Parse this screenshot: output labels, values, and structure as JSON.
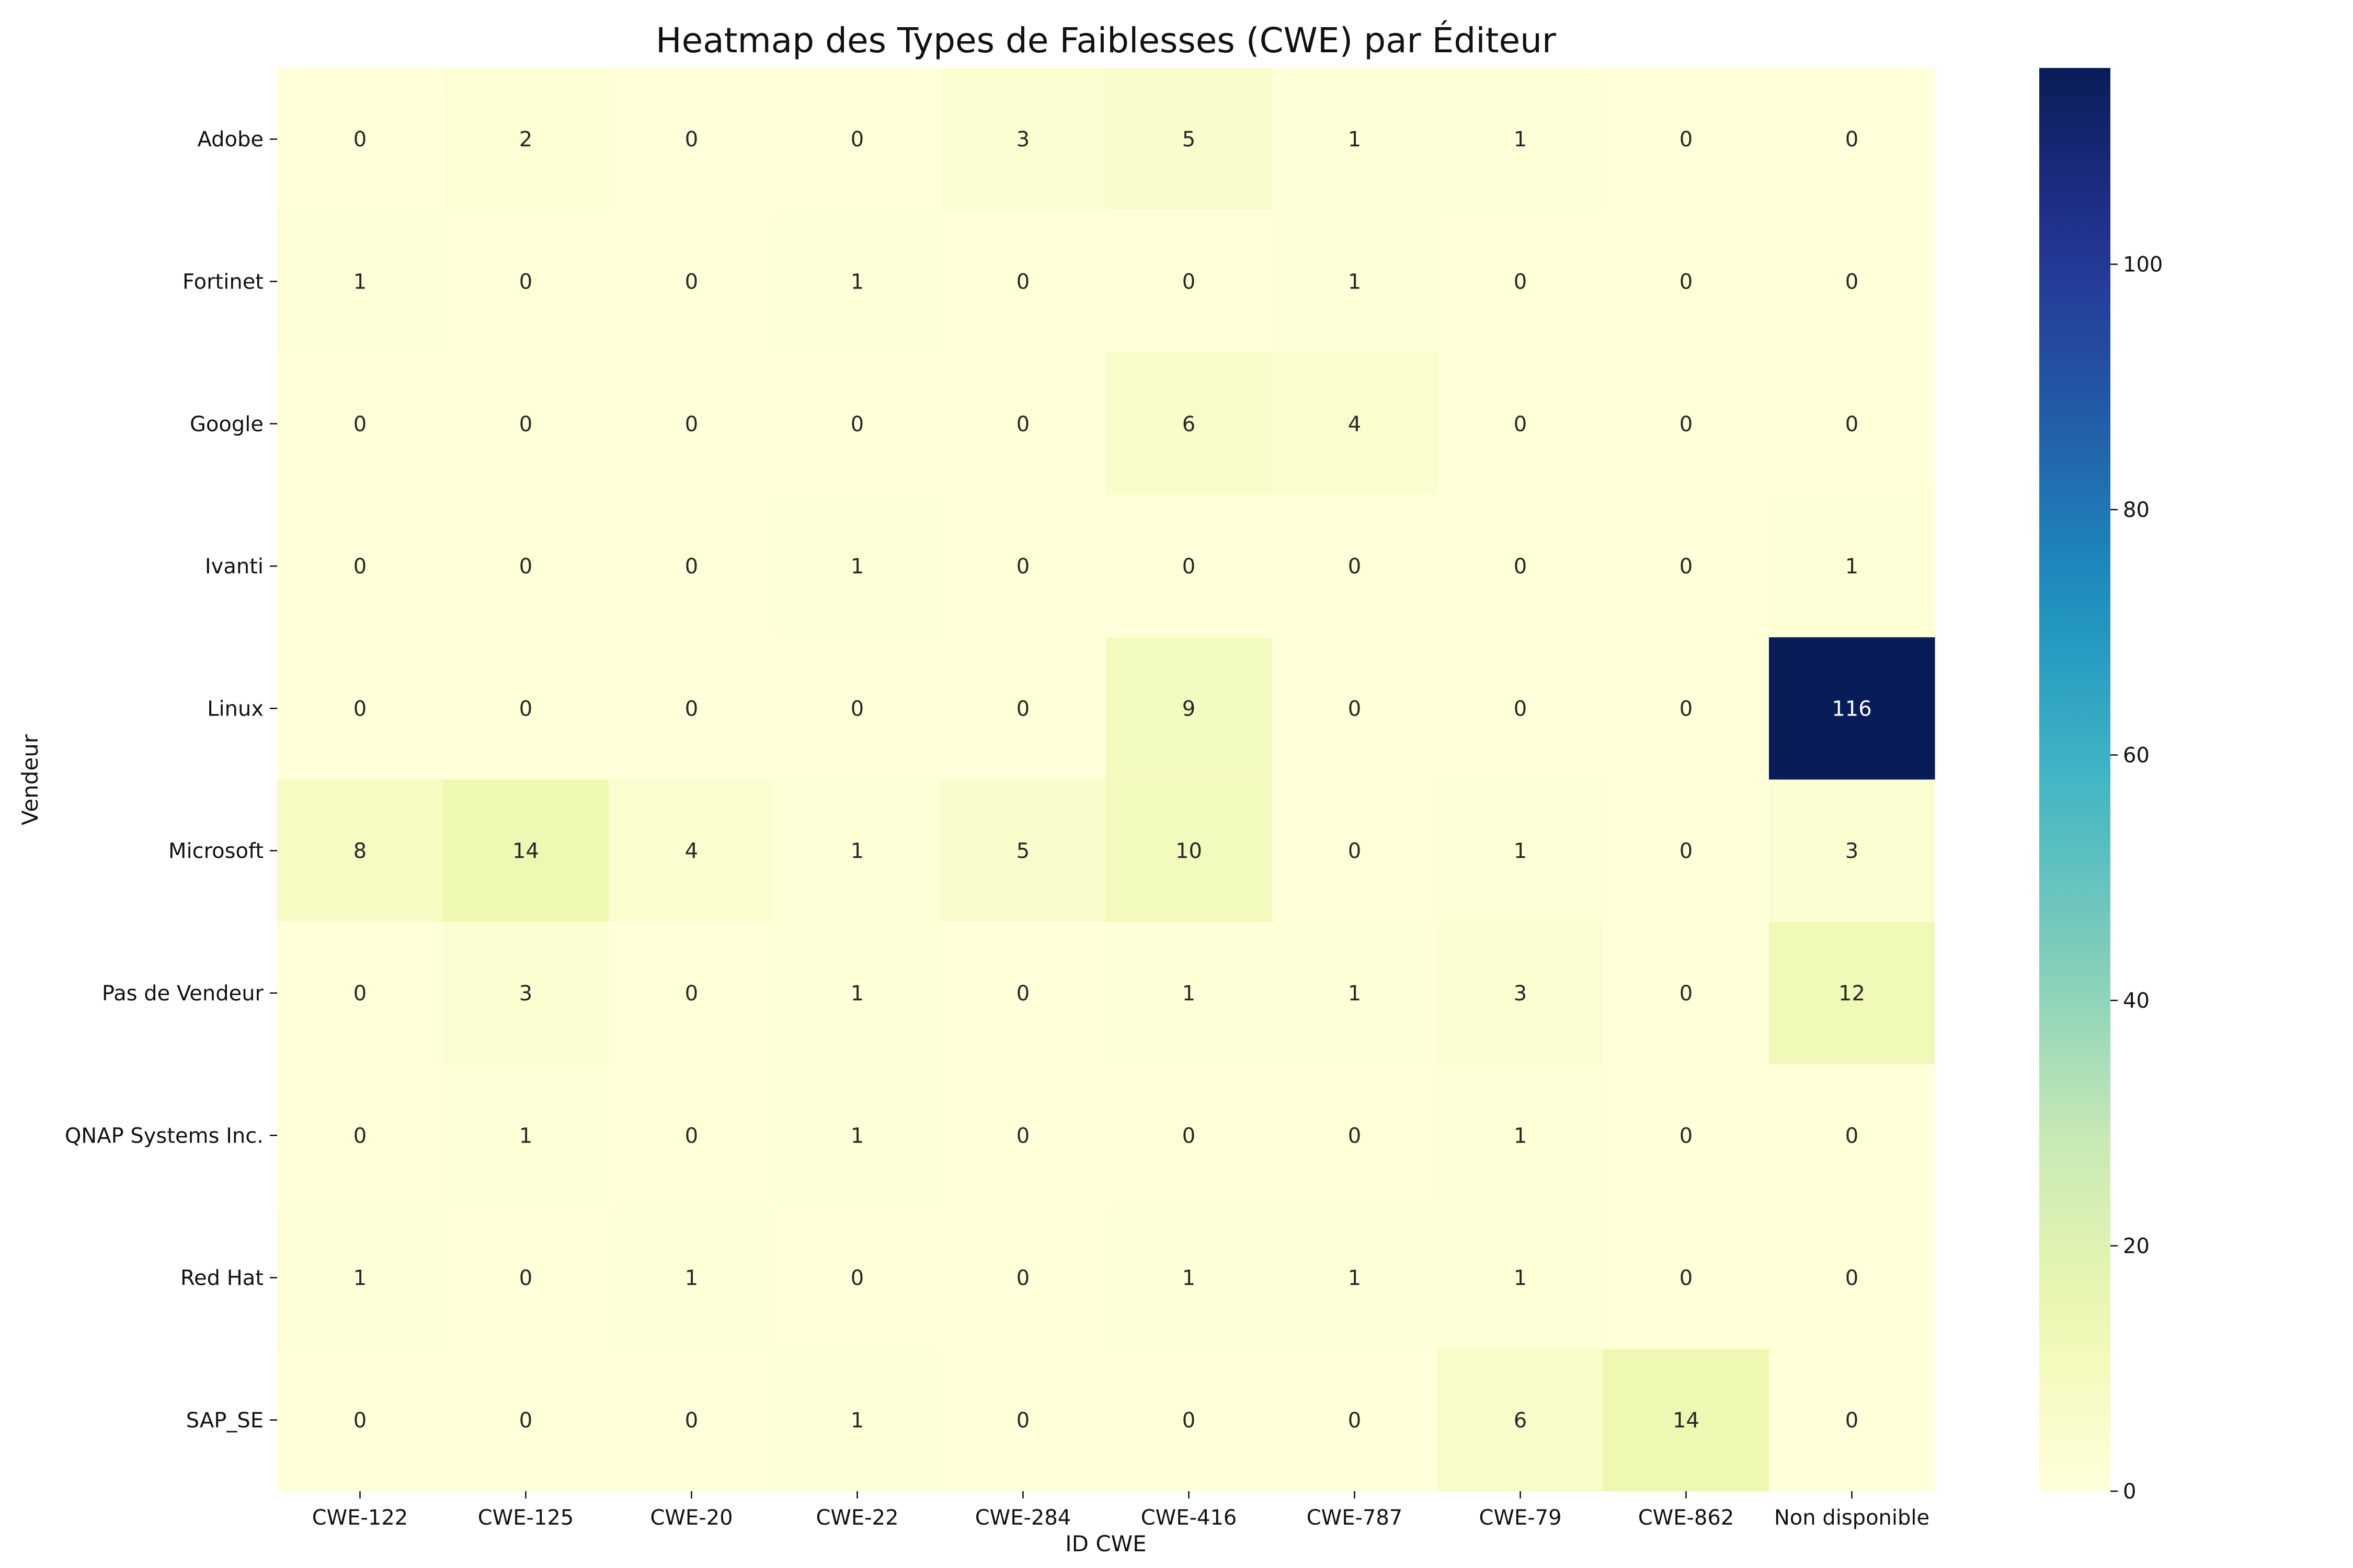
{
  "chart_data": {
    "type": "heatmap",
    "title": "Heatmap des Types de Faiblesses (CWE) par Éditeur",
    "xlabel": "ID CWE",
    "ylabel": "Vendeur",
    "x_categories": [
      "CWE-122",
      "CWE-125",
      "CWE-20",
      "CWE-22",
      "CWE-284",
      "CWE-416",
      "CWE-787",
      "CWE-79",
      "CWE-862",
      "Non disponible"
    ],
    "y_categories": [
      "Adobe",
      "Fortinet",
      "Google",
      "Ivanti",
      "Linux",
      "Microsoft",
      "Pas de Vendeur",
      "QNAP Systems Inc.",
      "Red Hat",
      "SAP_SE"
    ],
    "values": [
      [
        0,
        2,
        0,
        0,
        3,
        5,
        1,
        1,
        0,
        0
      ],
      [
        1,
        0,
        0,
        1,
        0,
        0,
        1,
        0,
        0,
        0
      ],
      [
        0,
        0,
        0,
        0,
        0,
        6,
        4,
        0,
        0,
        0
      ],
      [
        0,
        0,
        0,
        1,
        0,
        0,
        0,
        0,
        0,
        1
      ],
      [
        0,
        0,
        0,
        0,
        0,
        9,
        0,
        0,
        0,
        116
      ],
      [
        8,
        14,
        4,
        1,
        5,
        10,
        0,
        1,
        0,
        3
      ],
      [
        0,
        3,
        0,
        1,
        0,
        1,
        1,
        3,
        0,
        12
      ],
      [
        0,
        1,
        0,
        1,
        0,
        0,
        0,
        1,
        0,
        0
      ],
      [
        1,
        0,
        1,
        0,
        0,
        1,
        1,
        1,
        0,
        0
      ],
      [
        0,
        0,
        0,
        1,
        0,
        0,
        0,
        6,
        14,
        0
      ]
    ],
    "colormap": "YlGnBu",
    "vmin": 0,
    "vmax": 116,
    "colorbar_ticks": [
      0,
      20,
      40,
      60,
      80,
      100
    ],
    "annotated": true,
    "grid": false
  }
}
